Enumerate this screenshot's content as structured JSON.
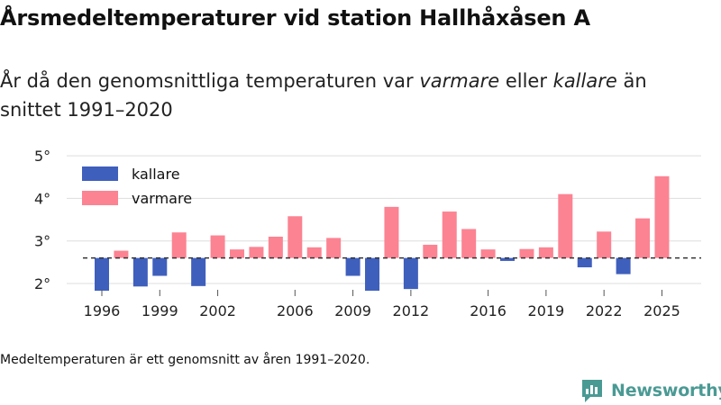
{
  "title": "Årsmedeltemperaturer vid station Hallhåxåsen A",
  "subtitle": {
    "part1": "År då den genomsnittliga temperaturen var ",
    "warmer": "varmare",
    "part2": " eller ",
    "colder": "kallare",
    "part3": " än snittet 1991–2020"
  },
  "footnote": "Medeltemperaturen är ett genomsnitt av åren 1991–2020.",
  "brand": {
    "name": "Newsworthy",
    "color": "#4a9a94"
  },
  "chart_data": {
    "type": "bar",
    "baseline": 2.6,
    "ylim": [
      1.75,
      5.1
    ],
    "yticks": [
      2,
      3,
      4,
      5
    ],
    "ytick_labels": [
      "2°",
      "3°",
      "4°",
      "5°"
    ],
    "xticks": [
      1996,
      1999,
      2002,
      2006,
      2009,
      2012,
      2016,
      2019,
      2022,
      2025
    ],
    "xtick_labels": [
      "1996",
      "1999",
      "2002",
      "2006",
      "2009",
      "2012",
      "2016",
      "2019",
      "2022",
      "2025"
    ],
    "colors": {
      "colder": "#3f5fbd",
      "warmer": "#fc8392",
      "grid": "#dddddd",
      "baseline": "#333333"
    },
    "legend": {
      "colder": "kallare",
      "warmer": "varmare",
      "placement": "top-left"
    },
    "years": [
      1996,
      1997,
      1998,
      1999,
      2000,
      2001,
      2002,
      2003,
      2004,
      2005,
      2006,
      2007,
      2008,
      2009,
      2010,
      2011,
      2012,
      2013,
      2014,
      2015,
      2016,
      2017,
      2018,
      2019,
      2020,
      2021,
      2022,
      2023,
      2024,
      2025
    ],
    "values": [
      1.83,
      2.77,
      1.93,
      2.18,
      3.2,
      1.94,
      3.13,
      2.8,
      2.86,
      3.1,
      3.58,
      2.85,
      3.07,
      2.18,
      1.83,
      3.8,
      1.87,
      2.91,
      3.69,
      3.28,
      2.8,
      2.53,
      2.81,
      2.85,
      4.1,
      2.38,
      3.22,
      2.22,
      3.53,
      4.52
    ]
  }
}
